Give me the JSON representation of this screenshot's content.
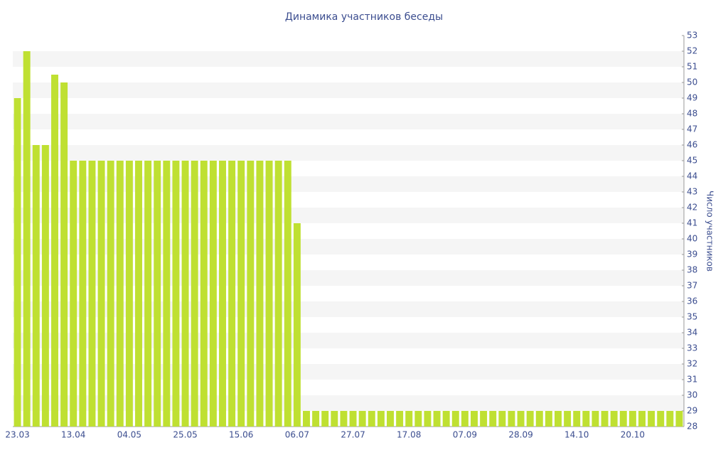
{
  "chart_data": {
    "type": "bar",
    "title": "Динамика участников беседы",
    "y_axis_label": "Число участников",
    "categories": [
      "23.03",
      null,
      null,
      null,
      null,
      null,
      "13.04",
      null,
      null,
      null,
      null,
      null,
      "04.05",
      null,
      null,
      null,
      null,
      null,
      "25.05",
      null,
      null,
      null,
      null,
      null,
      "15.06",
      null,
      null,
      null,
      null,
      null,
      "06.07",
      null,
      null,
      null,
      null,
      null,
      "27.07",
      null,
      null,
      null,
      null,
      null,
      "17.08",
      null,
      null,
      null,
      null,
      null,
      "07.09",
      null,
      null,
      null,
      null,
      null,
      "28.09",
      null,
      null,
      null,
      null,
      null,
      "14.10",
      null,
      null,
      null,
      null,
      null,
      "20.10",
      null,
      null,
      null,
      null,
      null
    ],
    "values": [
      49,
      52,
      46,
      46,
      50.5,
      50,
      45,
      45,
      45,
      45,
      45,
      45,
      45,
      45,
      45,
      45,
      45,
      45,
      45,
      45,
      45,
      45,
      45,
      45,
      45,
      45,
      45,
      45,
      45,
      45,
      41,
      29,
      29,
      29,
      29,
      29,
      29,
      29,
      29,
      29,
      29,
      29,
      29,
      29,
      29,
      29,
      29,
      29,
      29,
      29,
      29,
      29,
      29,
      29,
      29,
      29,
      29,
      29,
      29,
      29,
      29,
      29,
      29,
      29,
      29,
      29,
      29,
      29,
      29,
      29,
      29,
      29
    ],
    "color": "#bfe032",
    "ylim": [
      28,
      53
    ],
    "yticks": [
      28,
      29,
      30,
      31,
      32,
      33,
      34,
      35,
      36,
      37,
      38,
      39,
      40,
      41,
      42,
      43,
      44,
      45,
      46,
      47,
      48,
      49,
      50,
      51,
      52,
      53
    ],
    "grid": true
  }
}
